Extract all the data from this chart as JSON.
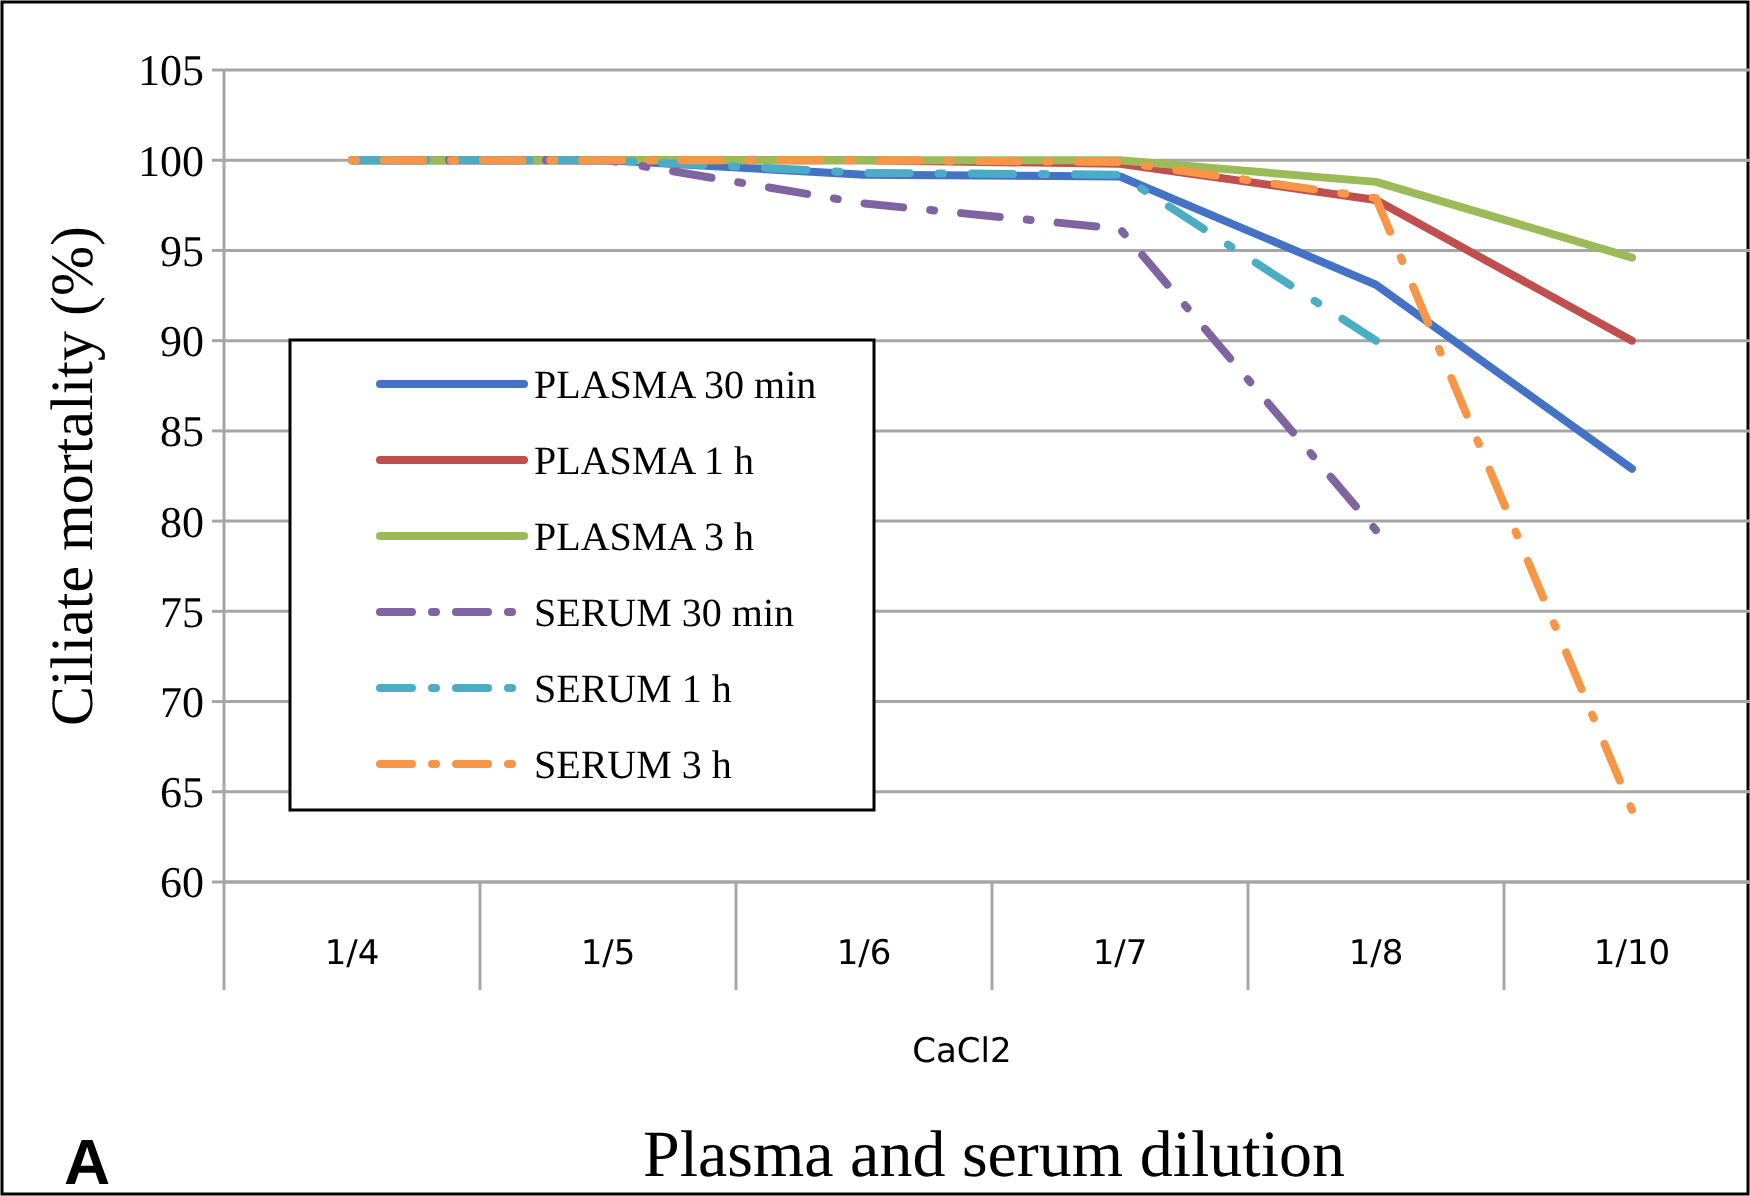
{
  "chart_data": {
    "type": "line",
    "title": "Plasma and serum dilution",
    "xlabel": "CaCl2",
    "ylabel": "Ciliate mortality (%)",
    "annotations": [
      "A"
    ],
    "categories": [
      "1/4",
      "1/5",
      "1/6",
      "1/7",
      "1/8",
      "1/10"
    ],
    "series": [
      {
        "name": "PLASMA 30 min",
        "color": "#4472c4",
        "line_style": "solid",
        "values": [
          100,
          100,
          99.2,
          99.1,
          93.1,
          82.9
        ]
      },
      {
        "name": "PLASMA 1 h",
        "color": "#c0504d",
        "line_style": "solid",
        "values": [
          100,
          100,
          100,
          99.8,
          97.8,
          90
        ]
      },
      {
        "name": "PLASMA 3 h",
        "color": "#9bbb59",
        "line_style": "solid",
        "values": [
          100,
          100,
          100,
          100,
          98.8,
          94.6
        ]
      },
      {
        "name": "SERUM 30 min",
        "color": "#8064a2",
        "line_style": "dashed",
        "values": [
          100,
          100,
          97.6,
          96.2,
          79.5,
          null
        ]
      },
      {
        "name": "SERUM 1 h",
        "color": "#4bacc6",
        "line_style": "dashed",
        "values": [
          100,
          100,
          99.3,
          99.2,
          90,
          null
        ]
      },
      {
        "name": "SERUM 3 h",
        "color": "#f79646",
        "line_style": "dashed",
        "values": [
          100,
          100,
          100,
          99.9,
          97.9,
          64
        ]
      }
    ],
    "ylim": [
      60,
      105
    ],
    "yticks": [
      60,
      65,
      70,
      75,
      80,
      85,
      90,
      95,
      100,
      105
    ],
    "grid": "y",
    "legend": "left",
    "marker": "none"
  }
}
